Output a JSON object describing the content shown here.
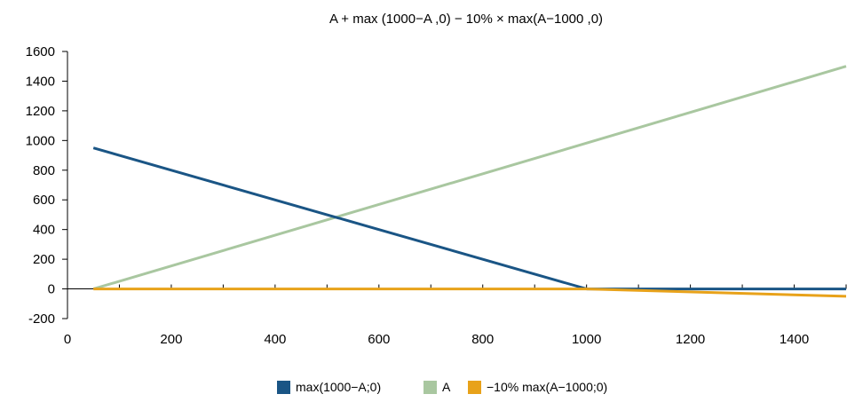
{
  "chart_data": {
    "type": "line",
    "title": "A + max (1000−A ,0) − 10% × max(A−1000 ,0)",
    "xlabel": "",
    "ylabel": "",
    "xlim": [
      0,
      1500
    ],
    "ylim": [
      -200,
      1600
    ],
    "x_ticks": [
      0,
      200,
      400,
      600,
      800,
      1000,
      1200,
      1400
    ],
    "x_tick_labels": [
      "0",
      "200",
      "400",
      "600",
      "800",
      "1000",
      "1200",
      "1400"
    ],
    "y_ticks": [
      -200,
      0,
      200,
      400,
      600,
      800,
      1000,
      1200,
      1400,
      1600
    ],
    "y_tick_labels": [
      "-200",
      "0",
      "200",
      "400",
      "600",
      "800",
      "1000",
      "1200",
      "1400",
      "1600"
    ],
    "grid": false,
    "legend_position": "bottom",
    "series": [
      {
        "name": "max(1000−A;0)",
        "color": "#1a5585",
        "x": [
          50,
          1000,
          1500
        ],
        "y": [
          950,
          0,
          0
        ]
      },
      {
        "name": "A",
        "color": "#a9c7a0",
        "x": [
          50,
          1500
        ],
        "y": [
          0,
          1500
        ]
      },
      {
        "name": "−10% max(A−1000;0)",
        "color": "#e8a21a",
        "x": [
          50,
          1000,
          1500
        ],
        "y": [
          0,
          0,
          -50
        ]
      }
    ]
  }
}
